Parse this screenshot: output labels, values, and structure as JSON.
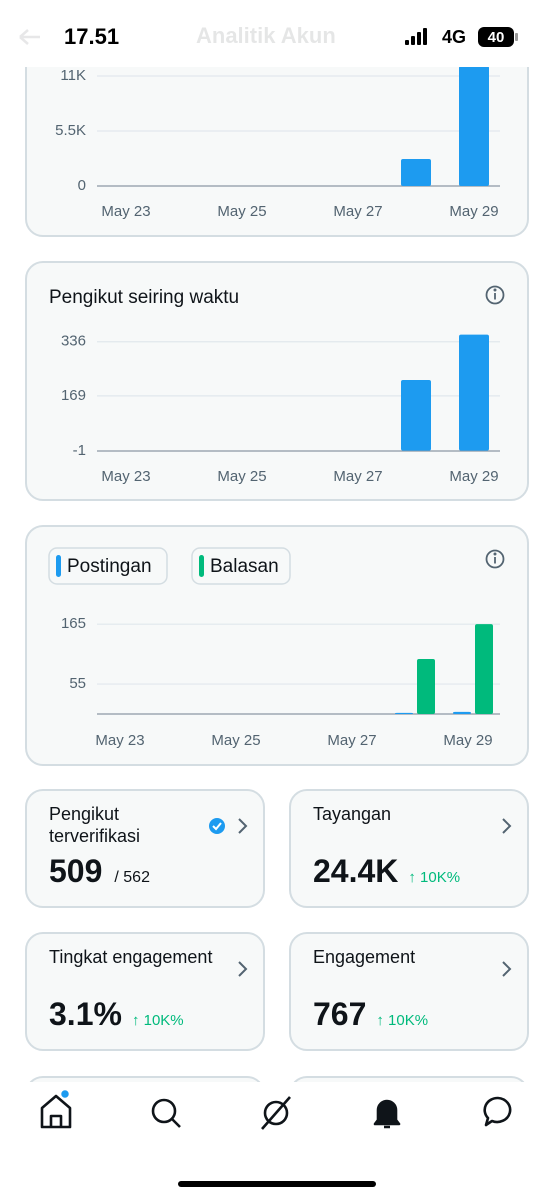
{
  "status_bar": {
    "time": "17.51",
    "network": "4G",
    "battery": "40"
  },
  "header": {
    "title": "Analitik Akun"
  },
  "charts": [
    {
      "type": "bar",
      "categories": [
        "May 23",
        null,
        "May 25",
        null,
        "May 27",
        null,
        "May 29"
      ],
      "series": [
        {
          "color": "#1d9bf0",
          "values": [
            0,
            0,
            0,
            0,
            0,
            2700,
            12000
          ]
        }
      ],
      "ylim": [
        0,
        12000
      ],
      "yticks": [
        0,
        {
          "value": 5500,
          "label": "5.5K"
        },
        {
          "value": 11000,
          "label": "11K"
        }
      ],
      "grid": true
    },
    {
      "type": "bar",
      "title": "Pengikut seiring waktu",
      "categories": [
        "May 23",
        null,
        "May 25",
        null,
        "May 27",
        null,
        "May 29"
      ],
      "series": [
        {
          "color": "#1d9bf0",
          "values": [
            0,
            0,
            0,
            0,
            0,
            218,
            358
          ]
        }
      ],
      "ylim": [
        -1,
        360
      ],
      "yticks": [
        -1,
        169,
        336
      ],
      "grid": true
    },
    {
      "type": "bar",
      "categories": [
        "May 23",
        null,
        "May 25",
        null,
        "May 27",
        null,
        "May 29"
      ],
      "series": [
        {
          "name": "Postingan",
          "color": "#1d9bf0",
          "values": [
            0,
            0,
            0,
            0,
            0,
            2,
            4
          ]
        },
        {
          "name": "Balasan",
          "color": "#00ba7c",
          "values": [
            0,
            0,
            0,
            0,
            0,
            101,
            165
          ]
        }
      ],
      "ylim": [
        0,
        180
      ],
      "yticks": [
        55,
        165
      ],
      "grid": true
    }
  ],
  "stats": [
    {
      "title": "Pengikut terverifikasi",
      "value": "509",
      "total": "/ 562",
      "verified": true
    },
    {
      "title": "Tayangan",
      "value": "24.4K",
      "change": "↑ 10K%"
    },
    {
      "title": "Tingkat engagement",
      "value": "3.1%",
      "change": "↑ 10K%"
    },
    {
      "title": "Engagement",
      "value": "767",
      "change": "↑ 10K%"
    }
  ]
}
